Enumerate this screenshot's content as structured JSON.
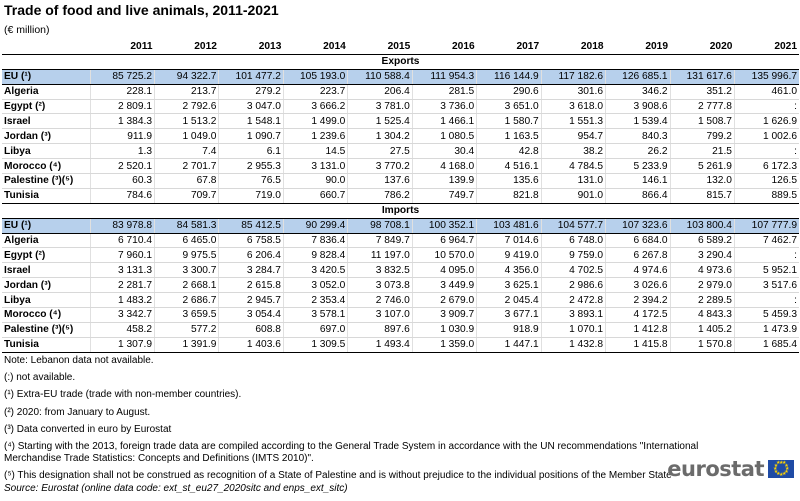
{
  "title": "Trade of food and live animals, 2011-2021",
  "unit": "(€ million)",
  "years": [
    "2011",
    "2012",
    "2013",
    "2014",
    "2015",
    "2016",
    "2017",
    "2018",
    "2019",
    "2020",
    "2021"
  ],
  "sections": [
    {
      "name": "Exports",
      "rows": [
        {
          "label": "EU (¹)",
          "values": [
            "85 725.2",
            "94 322.7",
            "101 477.2",
            "105 193.0",
            "110 588.4",
            "111 954.3",
            "116 144.9",
            "117 182.6",
            "126 685.1",
            "131 617.6",
            "135 996.7"
          ]
        },
        {
          "label": "Algeria",
          "values": [
            "228.1",
            "213.7",
            "279.2",
            "223.7",
            "206.4",
            "281.5",
            "290.6",
            "301.6",
            "346.2",
            "351.2",
            "461.0"
          ]
        },
        {
          "label": "Egypt (²)",
          "values": [
            "2 809.1",
            "2 792.6",
            "3 047.0",
            "3 666.2",
            "3 781.0",
            "3 736.0",
            "3 651.0",
            "3 618.0",
            "3 908.6",
            "2 777.8",
            ":"
          ]
        },
        {
          "label": "Israel",
          "values": [
            "1 384.3",
            "1 513.2",
            "1 548.1",
            "1 499.0",
            "1 525.4",
            "1 466.1",
            "1 580.7",
            "1 551.3",
            "1 539.4",
            "1 508.7",
            "1 626.9"
          ]
        },
        {
          "label": "Jordan (³)",
          "values": [
            "911.9",
            "1 049.0",
            "1 090.7",
            "1 239.6",
            "1 304.2",
            "1 080.5",
            "1 163.5",
            "954.7",
            "840.3",
            "799.2",
            "1 002.6"
          ]
        },
        {
          "label": "Libya",
          "values": [
            "1.3",
            "7.4",
            "6.1",
            "14.5",
            "27.5",
            "30.4",
            "42.8",
            "38.2",
            "26.2",
            "21.5",
            ":"
          ]
        },
        {
          "label": "Morocco (⁴)",
          "values": [
            "2 520.1",
            "2 701.7",
            "2 955.3",
            "3 131.0",
            "3 770.2",
            "4 168.0",
            "4 516.1",
            "4 784.5",
            "5 233.9",
            "5 261.9",
            "6 172.3"
          ]
        },
        {
          "label": "Palestine (³)(⁵)",
          "values": [
            "60.3",
            "67.8",
            "76.5",
            "90.0",
            "137.6",
            "139.9",
            "135.6",
            "131.0",
            "146.1",
            "132.0",
            "126.5"
          ]
        },
        {
          "label": "Tunisia",
          "values": [
            "784.6",
            "709.7",
            "719.0",
            "660.7",
            "786.2",
            "749.7",
            "821.8",
            "901.0",
            "866.4",
            "815.7",
            "889.5"
          ]
        }
      ]
    },
    {
      "name": "Imports",
      "rows": [
        {
          "label": "EU (¹)",
          "values": [
            "83 978.8",
            "84 581.3",
            "85 412.5",
            "90 299.4",
            "98 708.1",
            "100 352.1",
            "103 481.6",
            "104 577.7",
            "107 323.6",
            "103 800.4",
            "107 777.9"
          ]
        },
        {
          "label": "Algeria",
          "values": [
            "6 710.4",
            "6 465.0",
            "6 758.5",
            "7 836.4",
            "7 849.7",
            "6 964.7",
            "7 014.6",
            "6 748.0",
            "6 684.0",
            "6 589.2",
            "7 462.7"
          ]
        },
        {
          "label": "Egypt (²)",
          "values": [
            "7 960.1",
            "9 975.5",
            "6 206.4",
            "9 828.4",
            "11 197.0",
            "10 570.0",
            "9 419.0",
            "9 759.0",
            "6 267.8",
            "3 290.4",
            ":"
          ]
        },
        {
          "label": "Israel",
          "values": [
            "3 131.3",
            "3 300.7",
            "3 284.7",
            "3 420.5",
            "3 832.5",
            "4 095.0",
            "4 356.0",
            "4 702.5",
            "4 974.6",
            "4 973.6",
            "5 952.1"
          ]
        },
        {
          "label": "Jordan (³)",
          "values": [
            "2 281.7",
            "2 668.1",
            "2 615.8",
            "3 052.0",
            "3 073.8",
            "3 449.9",
            "3 625.1",
            "2 986.6",
            "3 026.6",
            "2 979.0",
            "3 517.6"
          ]
        },
        {
          "label": "Libya",
          "values": [
            "1 483.2",
            "2 686.7",
            "2 945.7",
            "2 353.4",
            "2 746.0",
            "2 679.0",
            "2 045.4",
            "2 472.8",
            "2 394.2",
            "2 289.5",
            ":"
          ]
        },
        {
          "label": "Morocco (⁴)",
          "values": [
            "3 342.7",
            "3 659.5",
            "3 054.4",
            "3 578.1",
            "3 107.0",
            "3 909.7",
            "3 677.1",
            "3 893.1",
            "4 172.5",
            "4 843.3",
            "5 459.3"
          ]
        },
        {
          "label": "Palestine (³)(⁵)",
          "values": [
            "458.2",
            "577.2",
            "608.8",
            "697.0",
            "897.6",
            "1 030.9",
            "918.9",
            "1 070.1",
            "1 412.8",
            "1 405.2",
            "1 473.9"
          ]
        },
        {
          "label": "Tunisia",
          "values": [
            "1 307.9",
            "1 391.9",
            "1 403.6",
            "1 309.5",
            "1 493.4",
            "1 359.0",
            "1 447.1",
            "1 432.8",
            "1 415.8",
            "1 570.8",
            "1 685.4"
          ]
        }
      ]
    }
  ],
  "notes": [
    "Note: Lebanon data not available.",
    "(:) not available.",
    "(¹) Extra-EU trade (trade with non-member countries).",
    "(²) 2020: from January to August.",
    "(³) Data converted in euro by Eurostat",
    "(⁴) Starting with the 2013, foreign trade data are compiled according to the General Trade System in accordance with the UN recommendations \"International Merchandise Trade Statistics: Concepts and Definitions (IMTS 2010)\".",
    "(⁵) This designation shall not be construed as recognition of a State of Palestine and is without prejudice to the individual positions of the Member State"
  ],
  "source": "Source:  Eurostat (online data code: ext_st_eu27_2020sitc and enps_ext_sitc)",
  "logo_text": "eurostat",
  "colors": {
    "eu_row": "#b7d0ec",
    "logo_text": "#6b6b6b",
    "flag": "#1f4ba5",
    "stars": "#ffd400"
  }
}
